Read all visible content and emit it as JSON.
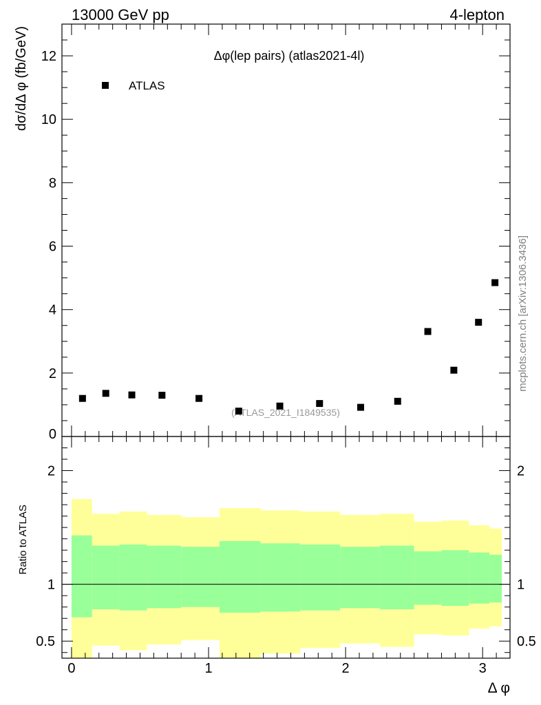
{
  "header": {
    "left": "13000 GeV pp",
    "right": "4-lepton"
  },
  "side_label": "mcplots.cern.ch [arXiv:1306.3436]",
  "chart_data": {
    "type": "scatter",
    "title": "Δφ(lep pairs) (atlas2021-4l)",
    "watermark": "(ATLAS_2021_I1849535)",
    "xlabel": "Δ φ",
    "ylabel": "dσ/dΔ φ (fb/GeV)",
    "ratio_ylabel": "Ratio to ATLAS",
    "xlim": [
      -0.07,
      3.2
    ],
    "ylim": [
      0,
      13
    ],
    "ratio_ylim": [
      0.35,
      2.3
    ],
    "x_ticks": [
      0,
      1,
      2,
      3
    ],
    "x_tick_labels": [
      "0",
      "1",
      "2",
      "3"
    ],
    "y_ticks": [
      0,
      2,
      4,
      6,
      8,
      10,
      12
    ],
    "y_tick_labels": [
      "0",
      "2",
      "4",
      "6",
      "8",
      "10",
      "12"
    ],
    "ratio_ticks": [
      0.5,
      1,
      2
    ],
    "ratio_tick_labels": [
      "0.5",
      "1",
      "2"
    ],
    "legend": {
      "label": "ATLAS",
      "position": "top-left",
      "color": "#000000"
    },
    "series": [
      {
        "name": "ATLAS",
        "x": [
          0.08,
          0.25,
          0.44,
          0.66,
          0.93,
          1.22,
          1.52,
          1.81,
          2.11,
          2.38,
          2.6,
          2.79,
          2.97,
          3.09
        ],
        "values": [
          1.2,
          1.36,
          1.31,
          1.3,
          1.2,
          0.8,
          0.96,
          1.04,
          0.92,
          1.11,
          3.31,
          2.09,
          3.6,
          4.85
        ]
      }
    ],
    "bin_edges": [
      0.0,
      0.15,
      0.35,
      0.55,
      0.8,
      1.08,
      1.38,
      1.67,
      1.96,
      2.25,
      2.5,
      2.7,
      2.9,
      3.05,
      3.14
    ],
    "band_yellow_hi": [
      1.75,
      1.62,
      1.64,
      1.61,
      1.59,
      1.67,
      1.65,
      1.64,
      1.61,
      1.62,
      1.55,
      1.56,
      1.52,
      1.49
    ],
    "band_yellow_lo": [
      0.32,
      0.46,
      0.42,
      0.47,
      0.51,
      0.33,
      0.39,
      0.44,
      0.48,
      0.45,
      0.56,
      0.55,
      0.61,
      0.63
    ],
    "band_green_hi": [
      1.43,
      1.34,
      1.35,
      1.34,
      1.33,
      1.38,
      1.36,
      1.35,
      1.33,
      1.34,
      1.29,
      1.3,
      1.28,
      1.26
    ],
    "band_green_lo": [
      0.71,
      0.78,
      0.77,
      0.79,
      0.8,
      0.75,
      0.76,
      0.77,
      0.79,
      0.78,
      0.82,
      0.81,
      0.83,
      0.84
    ],
    "colors": {
      "yellow_band": "#ffff99",
      "green_band": "#99ff99",
      "marker": "#000000",
      "watermark": "#999999"
    }
  }
}
